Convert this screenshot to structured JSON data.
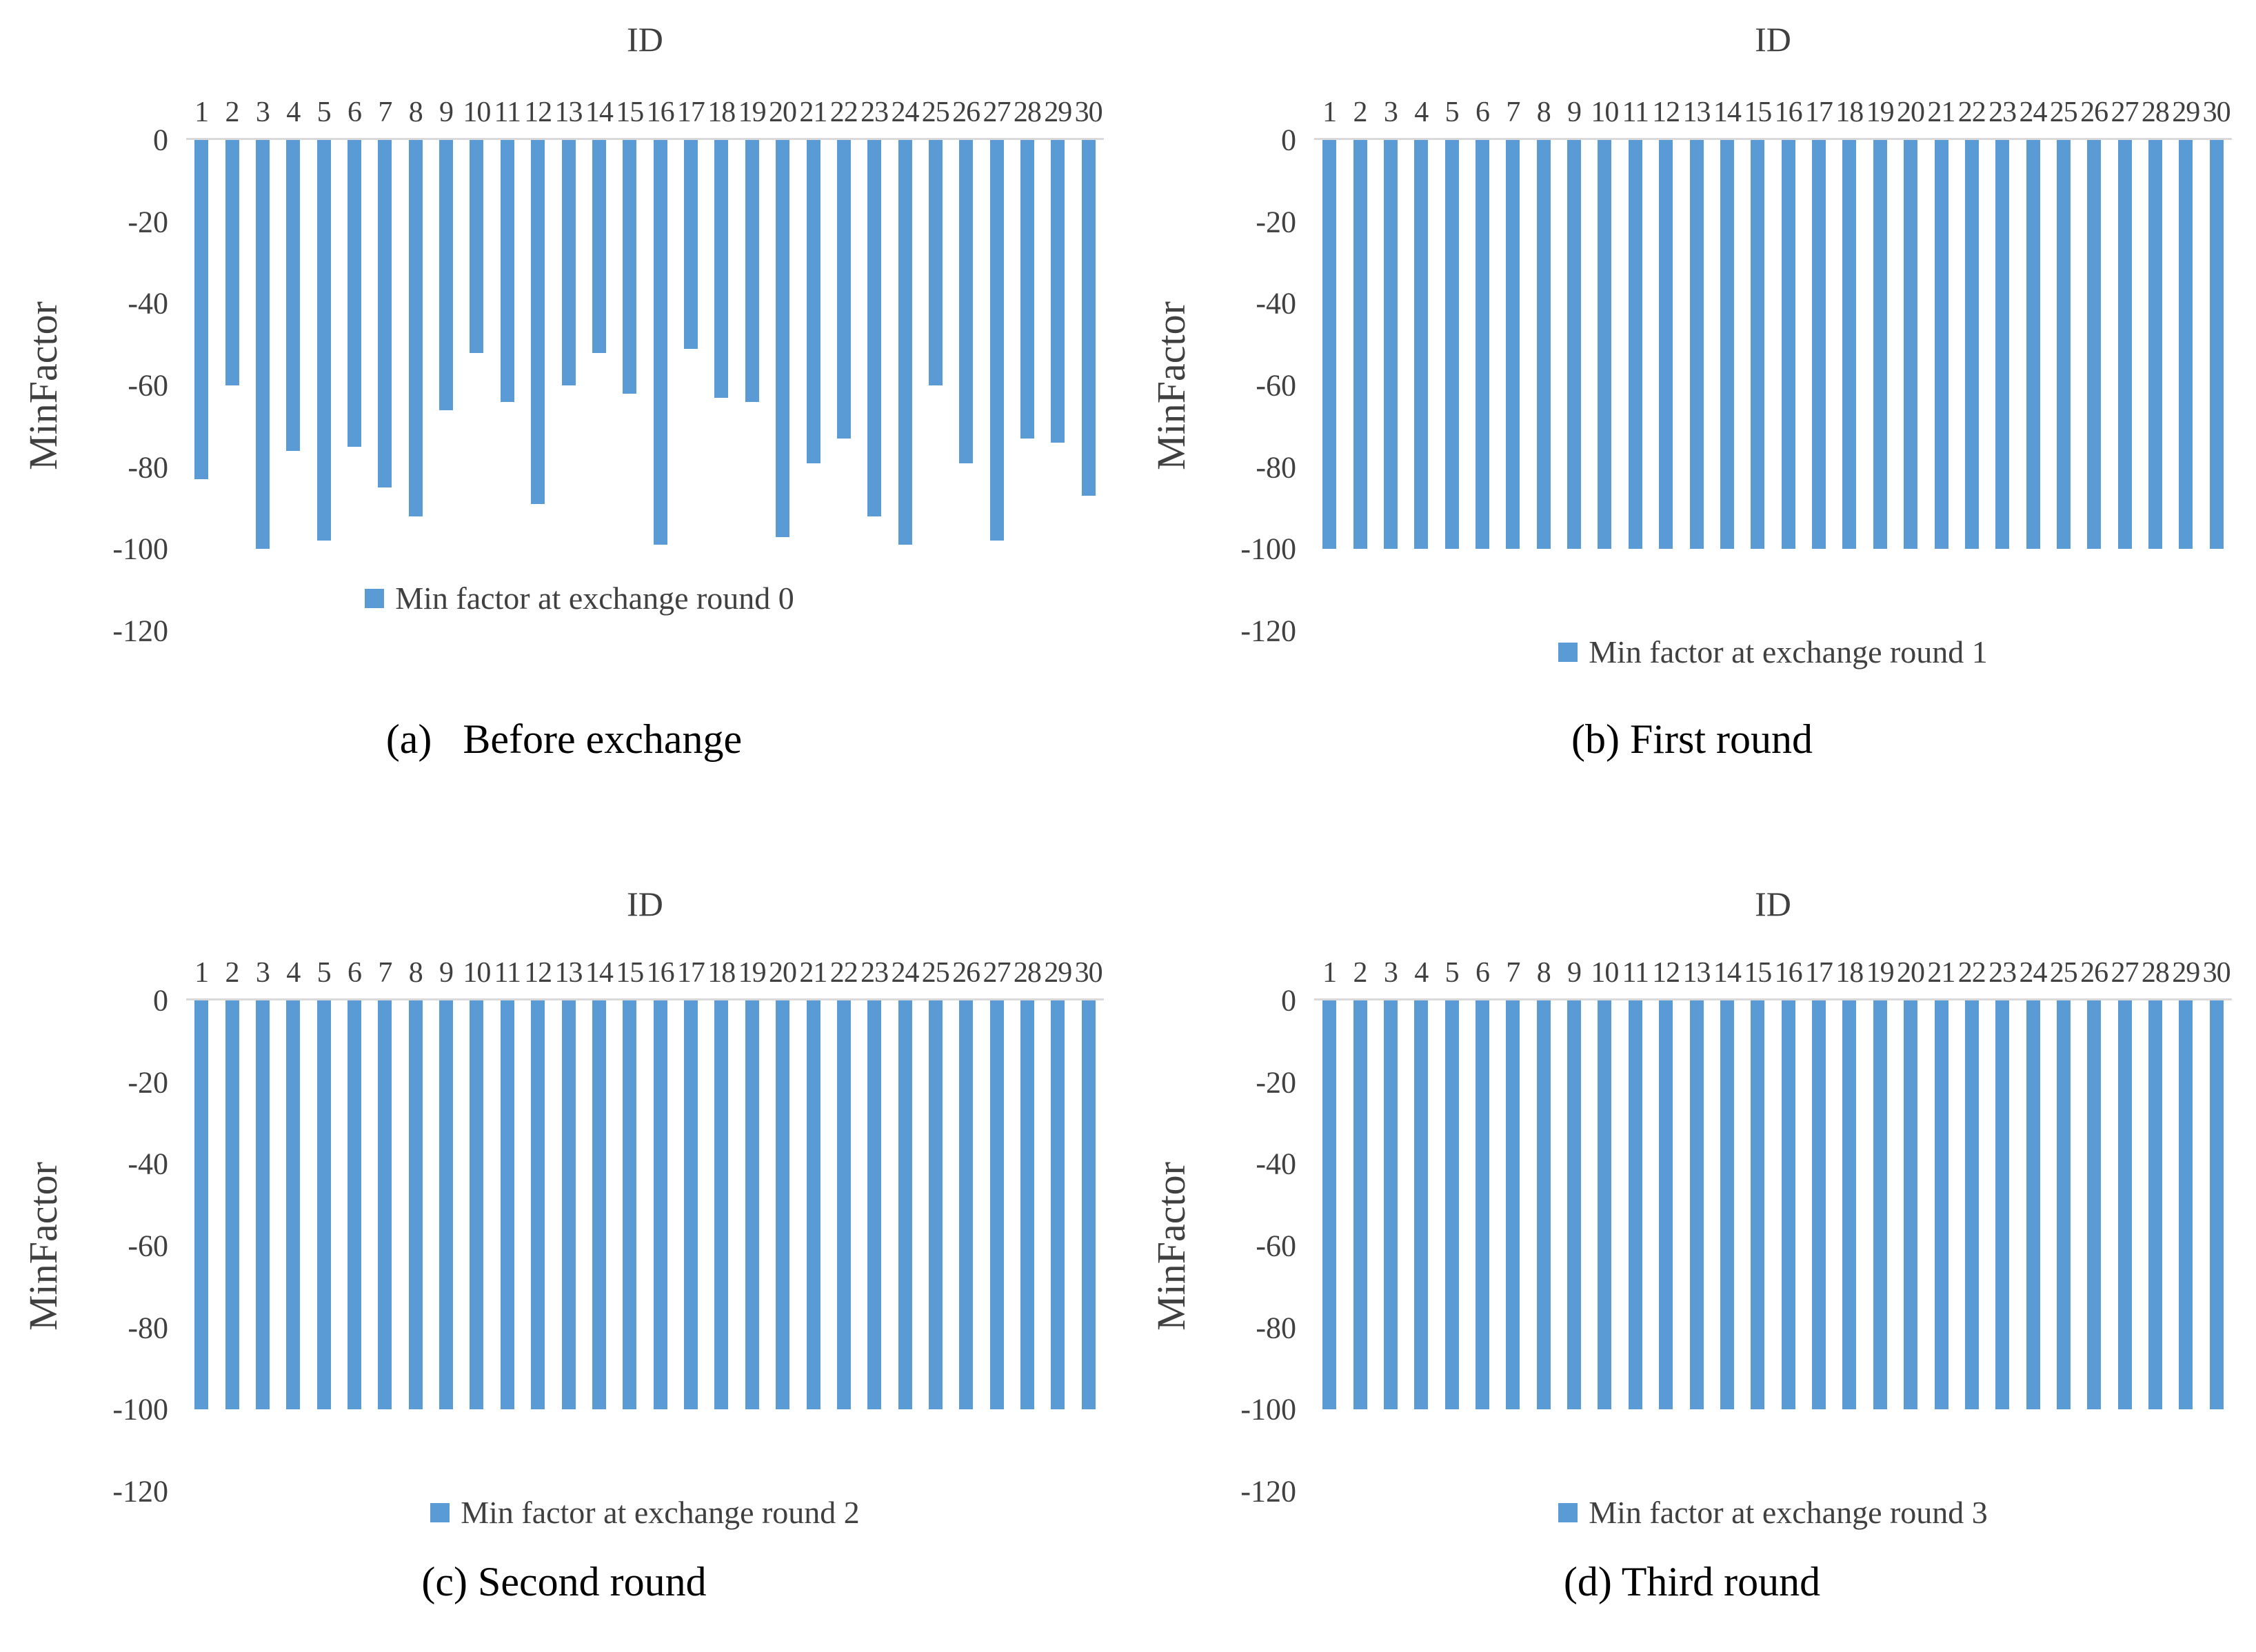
{
  "colors": {
    "bar": "#5b9bd5",
    "axis_line": "#d9d9d9",
    "tick_text": "#404040",
    "caption_text": "#000000"
  },
  "chart_data": [
    {
      "type": "bar",
      "title": "ID",
      "ylabel": "MinFactor",
      "categories": [
        "1",
        "2",
        "3",
        "4",
        "5",
        "6",
        "7",
        "8",
        "9",
        "10",
        "11",
        "12",
        "13",
        "14",
        "15",
        "16",
        "17",
        "18",
        "19",
        "20",
        "21",
        "22",
        "23",
        "24",
        "25",
        "26",
        "27",
        "28",
        "29",
        "30"
      ],
      "values": [
        -83,
        -60,
        -100,
        -76,
        -98,
        -75,
        -85,
        -92,
        -66,
        -52,
        -64,
        -89,
        -60,
        -52,
        -62,
        -99,
        -51,
        -63,
        -64,
        -97,
        -79,
        -73,
        -92,
        -99,
        -60,
        -79,
        -98,
        -73,
        -74,
        -87
      ],
      "yticks": [
        "0",
        "-20",
        "-40",
        "-60",
        "-80",
        "-100",
        "-120"
      ],
      "ylim": [
        -120,
        0
      ],
      "grid": false,
      "legend_label": "Min factor at exchange round 0",
      "legend_position": "inside-bottom-center",
      "caption": "(a)   Before exchange"
    },
    {
      "type": "bar",
      "title": "ID",
      "ylabel": "MinFactor",
      "categories": [
        "1",
        "2",
        "3",
        "4",
        "5",
        "6",
        "7",
        "8",
        "9",
        "10",
        "11",
        "12",
        "13",
        "14",
        "15",
        "16",
        "17",
        "18",
        "19",
        "20",
        "21",
        "22",
        "23",
        "24",
        "25",
        "26",
        "27",
        "28",
        "29",
        "30"
      ],
      "values": [
        -100,
        -100,
        -100,
        -100,
        -100,
        -100,
        -100,
        -100,
        -100,
        -100,
        -100,
        -100,
        -100,
        -100,
        -100,
        -100,
        -100,
        -100,
        -100,
        -100,
        -100,
        -100,
        -100,
        -100,
        -100,
        -100,
        -100,
        -100,
        -100,
        -100
      ],
      "yticks": [
        "0",
        "-20",
        "-40",
        "-60",
        "-80",
        "-100",
        "-120"
      ],
      "ylim": [
        -120,
        0
      ],
      "grid": false,
      "legend_label": "Min factor at exchange round 1",
      "legend_position": "below-center",
      "caption": "(b) First round"
    },
    {
      "type": "bar",
      "title": "ID",
      "ylabel": "MinFactor",
      "categories": [
        "1",
        "2",
        "3",
        "4",
        "5",
        "6",
        "7",
        "8",
        "9",
        "10",
        "11",
        "12",
        "13",
        "14",
        "15",
        "16",
        "17",
        "18",
        "19",
        "20",
        "21",
        "22",
        "23",
        "24",
        "25",
        "26",
        "27",
        "28",
        "29",
        "30"
      ],
      "values": [
        -100,
        -100,
        -100,
        -100,
        -100,
        -100,
        -100,
        -100,
        -100,
        -100,
        -100,
        -100,
        -100,
        -100,
        -100,
        -100,
        -100,
        -100,
        -100,
        -100,
        -100,
        -100,
        -100,
        -100,
        -100,
        -100,
        -100,
        -100,
        -100,
        -100
      ],
      "yticks": [
        "0",
        "-20",
        "-40",
        "-60",
        "-80",
        "-100",
        "-120"
      ],
      "ylim": [
        -120,
        0
      ],
      "grid": false,
      "legend_label": "Min factor at exchange round 2",
      "legend_position": "below-center",
      "caption": "(c) Second round"
    },
    {
      "type": "bar",
      "title": "ID",
      "ylabel": "MinFactor",
      "categories": [
        "1",
        "2",
        "3",
        "4",
        "5",
        "6",
        "7",
        "8",
        "9",
        "10",
        "11",
        "12",
        "13",
        "14",
        "15",
        "16",
        "17",
        "18",
        "19",
        "20",
        "21",
        "22",
        "23",
        "24",
        "25",
        "26",
        "27",
        "28",
        "29",
        "30"
      ],
      "values": [
        -100,
        -100,
        -100,
        -100,
        -100,
        -100,
        -100,
        -100,
        -100,
        -100,
        -100,
        -100,
        -100,
        -100,
        -100,
        -100,
        -100,
        -100,
        -100,
        -100,
        -100,
        -100,
        -100,
        -100,
        -100,
        -100,
        -100,
        -100,
        -100,
        -100
      ],
      "yticks": [
        "0",
        "-20",
        "-40",
        "-60",
        "-80",
        "-100",
        "-120"
      ],
      "ylim": [
        -120,
        0
      ],
      "grid": false,
      "legend_label": "Min factor at exchange round 3",
      "legend_position": "below-center",
      "caption": "(d) Third round"
    }
  ]
}
